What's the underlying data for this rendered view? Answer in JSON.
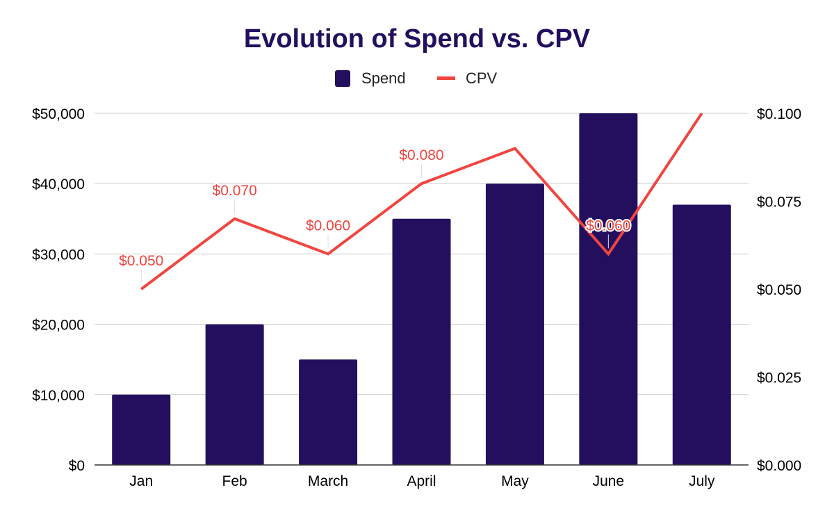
{
  "chart_data": {
    "type": "bar",
    "title": "Evolution of Spend vs. CPV",
    "categories": [
      "Jan",
      "Feb",
      "March",
      "April",
      "May",
      "June",
      "July"
    ],
    "series": [
      {
        "name": "Spend",
        "type": "bar",
        "axis": "left",
        "color": "#240f5f",
        "values": [
          10000,
          20000,
          15000,
          35000,
          40000,
          50000,
          37000
        ]
      },
      {
        "name": "CPV",
        "type": "line",
        "axis": "right",
        "color": "#f0463f",
        "values": [
          0.05,
          0.07,
          0.06,
          0.08,
          0.09,
          0.06,
          0.1
        ],
        "data_labels": [
          "$0.050",
          "$0.070",
          "$0.060",
          "$0.080",
          "",
          "$0.060",
          ""
        ]
      }
    ],
    "y_left": {
      "range": [
        0,
        50000
      ],
      "ticks": [
        0,
        10000,
        20000,
        30000,
        40000,
        50000
      ],
      "tick_labels": [
        "$0",
        "$10,000",
        "$20,000",
        "$30,000",
        "$40,000",
        "$50,000"
      ]
    },
    "y_right": {
      "range": [
        0,
        0.1
      ],
      "ticks": [
        0,
        0.025,
        0.05,
        0.075,
        0.1
      ],
      "tick_labels": [
        "$0.000",
        "$0.025",
        "$0.050",
        "$0.075",
        "$0.100"
      ]
    },
    "grid": true,
    "legend": {
      "position": "top-center",
      "entries": [
        "Spend",
        "CPV"
      ]
    },
    "colors": {
      "title": "#240f5f",
      "grid": "#cccccc",
      "axis": "#333333",
      "text": "#000000"
    }
  }
}
